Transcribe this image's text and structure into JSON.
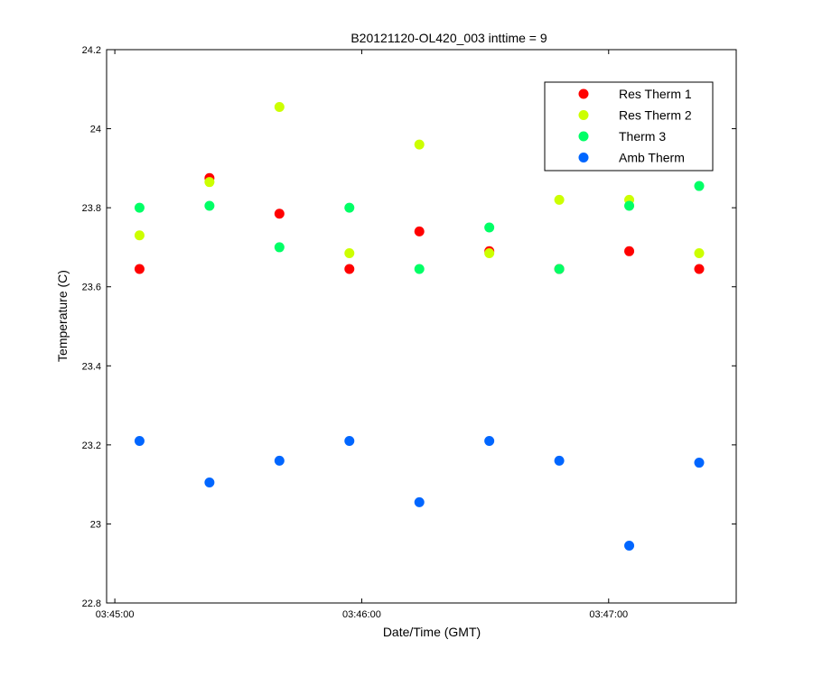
{
  "chart_data": {
    "type": "scatter",
    "title": "B20121120-OL420_003 inttime = 9",
    "xlabel": "Date/Time (GMT)",
    "ylabel": "Temperature (C)",
    "xlim": [
      "03:44:58",
      "03:47:31"
    ],
    "ylim": [
      22.8,
      24.2
    ],
    "x_ticks": [
      "03:45:00",
      "03:46:00",
      "03:47:00"
    ],
    "y_ticks": [
      "22.8",
      "23",
      "23.2",
      "23.4",
      "23.6",
      "23.8",
      "24",
      "24.2"
    ],
    "grid": false,
    "legend_position": "top-right",
    "x": [
      "03:45:06",
      "03:45:23",
      "03:45:40",
      "03:45:57",
      "03:46:14",
      "03:46:31",
      "03:46:48",
      "03:47:05",
      "03:47:22"
    ],
    "series": [
      {
        "name": "Res Therm 1",
        "color": "#ff0000",
        "values": [
          23.645,
          23.875,
          23.785,
          23.645,
          23.74,
          23.69,
          23.645,
          23.69,
          23.645
        ]
      },
      {
        "name": "Res Therm 2",
        "color": "#ccff00",
        "values": [
          23.73,
          23.865,
          24.055,
          23.685,
          23.96,
          23.685,
          23.82,
          23.82,
          23.685
        ]
      },
      {
        "name": "Therm 3",
        "color": "#00ff66",
        "values": [
          23.8,
          23.805,
          23.7,
          23.8,
          23.645,
          23.75,
          23.645,
          23.805,
          23.855
        ]
      },
      {
        "name": "Amb Therm",
        "color": "#0066ff",
        "values": [
          23.21,
          23.105,
          23.16,
          23.21,
          23.055,
          23.21,
          23.16,
          22.945,
          23.155
        ]
      }
    ]
  }
}
